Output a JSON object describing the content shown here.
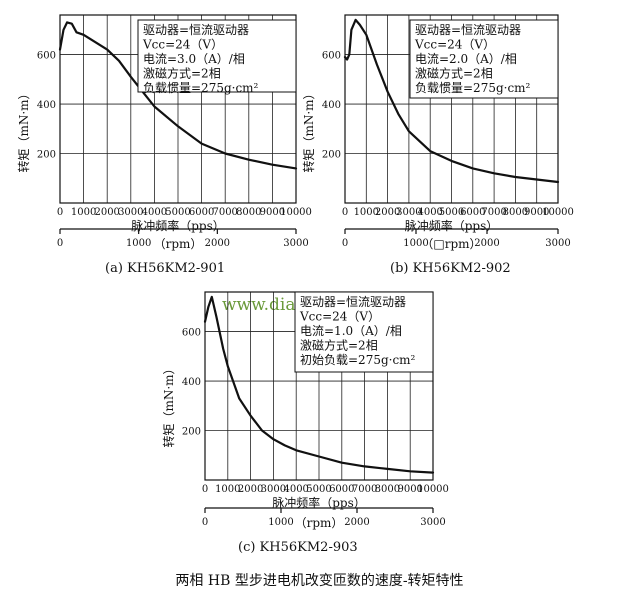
{
  "figure": {
    "caption": "两相 HB 型步进电机改变匝数的速度-转矩特性",
    "watermark": "www.dian...com"
  },
  "axis_text": {
    "ylabel": "转矩（mN·m）",
    "xlabel": "脉冲频率（pps）"
  },
  "chart_data": [
    {
      "type": "line",
      "caption": "(a)  KH56KM2-901",
      "rpm_label": "（rpm）",
      "x_ticks": [
        0,
        1000,
        2000,
        3000,
        4000,
        5000,
        6000,
        7000,
        8000,
        9000,
        10000
      ],
      "y_ticks": [
        200,
        400,
        600
      ],
      "rpm_ticks": [
        0,
        1000,
        2000,
        3000
      ],
      "xlim": [
        0,
        10000
      ],
      "ylim": [
        0,
        760
      ],
      "info": [
        "驱动器=恒流驱动器",
        "Vcc=24（V）",
        "电流=3.0（A）/相",
        "激磁方式=2相",
        "负载惯量=275g·cm²"
      ],
      "x": [
        0,
        150,
        300,
        500,
        700,
        1000,
        1500,
        2000,
        2500,
        3000,
        3500,
        4000,
        5000,
        6000,
        7000,
        8000,
        9000,
        10000
      ],
      "y": [
        620,
        700,
        730,
        725,
        690,
        680,
        650,
        620,
        575,
        510,
        450,
        390,
        310,
        240,
        200,
        175,
        155,
        140
      ]
    },
    {
      "type": "line",
      "caption": "(b)  KH56KM2-902",
      "rpm_label": "（□rpm）",
      "x_ticks": [
        0,
        1000,
        2000,
        3000,
        4000,
        5000,
        6000,
        7000,
        8000,
        9000,
        10000
      ],
      "y_ticks": [
        200,
        400,
        600
      ],
      "rpm_ticks": [
        0,
        1000,
        2000,
        3000
      ],
      "xlim": [
        0,
        10000
      ],
      "ylim": [
        0,
        760
      ],
      "info": [
        "驱动器=恒流驱动器",
        "Vcc=24（V）",
        "电流=2.0（A）/相",
        "激磁方式=2相",
        "负载惯量=275g·cm²"
      ],
      "x": [
        0,
        100,
        200,
        300,
        500,
        700,
        1000,
        1500,
        2000,
        2500,
        3000,
        4000,
        5000,
        6000,
        7000,
        8000,
        9000,
        10000
      ],
      "y": [
        590,
        580,
        600,
        700,
        740,
        720,
        680,
        560,
        450,
        360,
        290,
        210,
        170,
        140,
        120,
        105,
        95,
        85
      ]
    },
    {
      "type": "line",
      "caption": "(c)  KH56KM2-903",
      "rpm_label": "（rpm）",
      "x_ticks": [
        0,
        1000,
        2000,
        3000,
        4000,
        5000,
        6000,
        7000,
        8000,
        9000,
        10000
      ],
      "y_ticks": [
        200,
        400,
        600
      ],
      "rpm_ticks": [
        0,
        1000,
        2000,
        3000
      ],
      "xlim": [
        0,
        10000
      ],
      "ylim": [
        0,
        760
      ],
      "info": [
        "驱动器=恒流驱动器",
        "Vcc=24（V）",
        "电流=1.0（A）/相",
        "激磁方式=2相",
        "初始负载=275g·cm²"
      ],
      "x": [
        0,
        150,
        300,
        500,
        800,
        1000,
        1500,
        2000,
        2500,
        3000,
        3500,
        4000,
        5000,
        6000,
        7000,
        8000,
        9000,
        10000
      ],
      "y": [
        640,
        700,
        740,
        660,
        530,
        460,
        330,
        260,
        200,
        165,
        140,
        120,
        95,
        70,
        55,
        45,
        35,
        30
      ]
    }
  ]
}
